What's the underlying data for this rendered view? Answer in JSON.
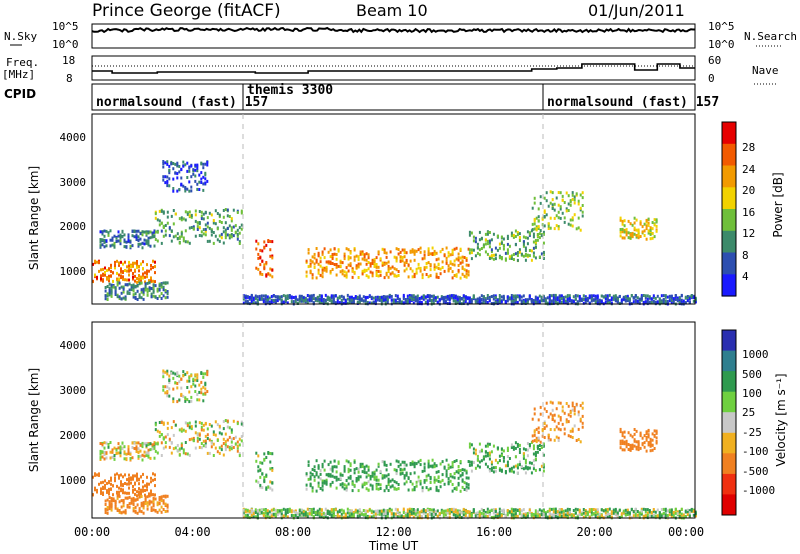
{
  "header": {
    "station": "Prince George (fitACF)",
    "beam": "Beam 10",
    "date": "01/Jun/2011"
  },
  "noise_panel": {
    "left_label": "N.Sky",
    "right_label": "N.Search",
    "left_ticks": [
      "10^5",
      "10^0"
    ],
    "right_ticks": [
      "10^5",
      "10^0"
    ]
  },
  "freq_panel": {
    "left_label_line1": "Freq.",
    "left_label_line2": "[MHz]",
    "right_label": "Nave",
    "left_ticks": [
      "18",
      "8"
    ],
    "right_ticks": [
      "60",
      "0"
    ],
    "freq_mhz": [
      11.5,
      11.5,
      10.5,
      10.5,
      11,
      11,
      10.5,
      10.5,
      11.5,
      11.5,
      12.5,
      12.5,
      13,
      13,
      15,
      15,
      12,
      12,
      15,
      15,
      13,
      13
    ],
    "freq_hours": [
      0,
      0.8,
      0.8,
      2.6,
      2.6,
      6.5,
      6.5,
      8.6,
      8.6,
      17.5,
      17.5,
      18.5,
      18.5,
      19.5,
      19.5,
      21.6,
      21.6,
      22.5,
      22.5,
      23.4,
      23.4,
      24
    ]
  },
  "cpid": {
    "label": "CPID",
    "segments": [
      {
        "text": "normalsound (fast) 157",
        "start_hour": 0,
        "end_hour": 6
      },
      {
        "text": "themis 3300",
        "start_hour": 6,
        "end_hour": 18
      },
      {
        "text": "normalsound (fast) 157",
        "start_hour": 18,
        "end_hour": 24
      }
    ]
  },
  "power_panel": {
    "ylabel": "Slant Range [km]",
    "y_ticks": [
      "1000",
      "2000",
      "3000",
      "4000"
    ],
    "colorbar_label": "Power [dB]",
    "colorbar_ticks": [
      "4",
      "8",
      "12",
      "16",
      "20",
      "24",
      "28"
    ]
  },
  "velocity_panel": {
    "ylabel": "Slant Range [km]",
    "y_ticks": [
      "1000",
      "2000",
      "3000",
      "4000"
    ],
    "colorbar_label": "Velocity [m s⁻¹]",
    "colorbar_ticks": [
      "1000",
      "500",
      "100",
      "25",
      "-25",
      "-100",
      "-500",
      "-1000"
    ]
  },
  "x_axis": {
    "label": "Time UT",
    "ticks": [
      "00:00",
      "04:00",
      "08:00",
      "12:00",
      "16:00",
      "20:00",
      "00:00"
    ]
  },
  "colors": {
    "power_scale": [
      "#1a1aff",
      "#2d4fb0",
      "#3c8a6a",
      "#6fbf3a",
      "#f2d200",
      "#f29a00",
      "#f25a00",
      "#e60000"
    ],
    "velocity_scale": [
      "#2a2fb0",
      "#2f7f8f",
      "#2f9a4f",
      "#6fd040",
      "#c8c8c8",
      "#f0b020",
      "#f08020",
      "#f03010",
      "#e00000"
    ]
  },
  "chart_data": {
    "type": "heatmap",
    "title": "Prince George (fitACF)",
    "xlabel": "Time UT",
    "ylabel": "Slant Range [km]",
    "xlim": [
      0,
      24
    ],
    "ylim": [
      200,
      4600
    ],
    "power_dB_range": [
      0,
      32
    ],
    "velocity_range": [
      -1200,
      1200
    ],
    "regions": [
      {
        "start_hour": 0.0,
        "end_hour": 2.5,
        "range_low_km": 700,
        "range_high_km": 1200,
        "power_dB": 24,
        "velocity": -300
      },
      {
        "start_hour": 0.3,
        "end_hour": 2.5,
        "range_low_km": 1500,
        "range_high_km": 1900,
        "power_dB": 8,
        "velocity": -25
      },
      {
        "start_hour": 2.5,
        "end_hour": 6.0,
        "range_low_km": 1600,
        "range_high_km": 2400,
        "power_dB": 12,
        "velocity": 0
      },
      {
        "start_hour": 2.8,
        "end_hour": 4.6,
        "range_low_km": 2800,
        "range_high_km": 3500,
        "power_dB": 5,
        "velocity": 0
      },
      {
        "start_hour": 0.5,
        "end_hour": 3.0,
        "range_low_km": 300,
        "range_high_km": 700,
        "power_dB": 10,
        "velocity": -200
      },
      {
        "start_hour": 6.5,
        "end_hour": 7.2,
        "range_low_km": 800,
        "range_high_km": 1700,
        "power_dB": 26,
        "velocity": 100
      },
      {
        "start_hour": 8.5,
        "end_hour": 15.0,
        "range_low_km": 800,
        "range_high_km": 1500,
        "power_dB": 22,
        "velocity": 150
      },
      {
        "start_hour": 15.0,
        "end_hour": 18.0,
        "range_low_km": 1200,
        "range_high_km": 1900,
        "power_dB": 12,
        "velocity": 100
      },
      {
        "start_hour": 17.5,
        "end_hour": 19.5,
        "range_low_km": 1900,
        "range_high_km": 2800,
        "power_dB": 14,
        "velocity": -150
      },
      {
        "start_hour": 21.0,
        "end_hour": 22.5,
        "range_low_km": 1700,
        "range_high_km": 2200,
        "power_dB": 18,
        "velocity": -300
      },
      {
        "start_hour": 6.0,
        "end_hour": 24.0,
        "range_low_km": 200,
        "range_high_km": 400,
        "power_dB": 6,
        "velocity": 50
      }
    ]
  }
}
